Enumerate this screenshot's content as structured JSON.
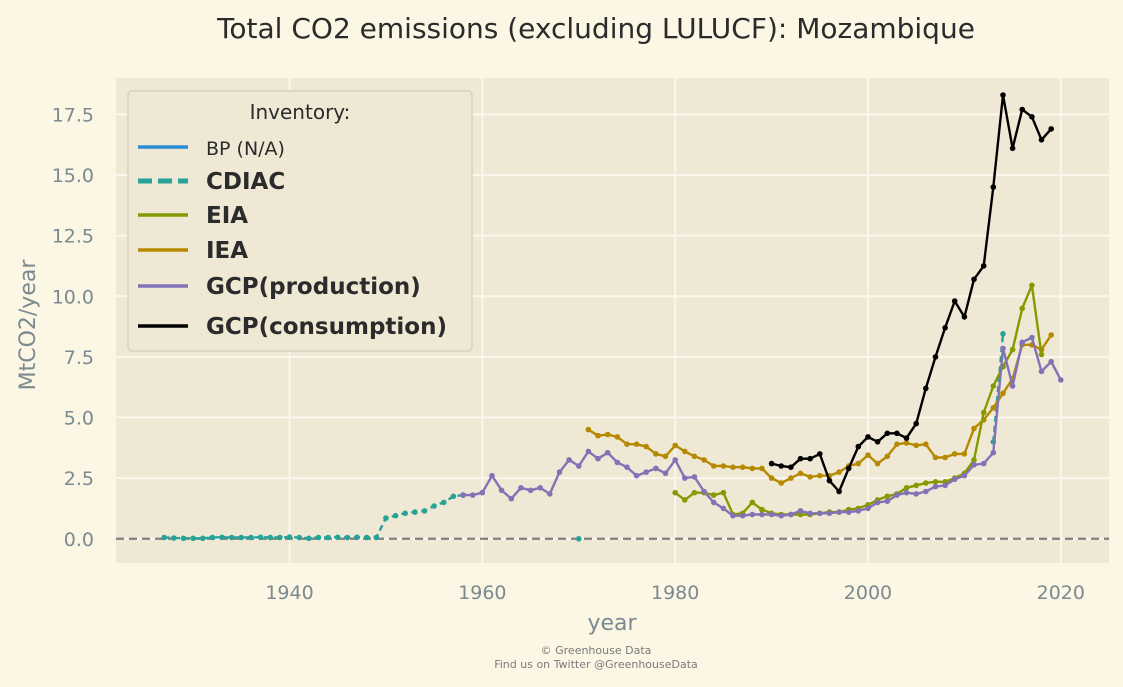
{
  "chart_data": {
    "type": "line",
    "title": "Total CO2 emissions (excluding LULUCF): Mozambique",
    "xlabel": "year",
    "ylabel": "MtCO2/year",
    "xlim": [
      1922,
      2025
    ],
    "ylim": [
      -1.0,
      19.0
    ],
    "x_ticks": [
      1940,
      1960,
      1980,
      2000,
      2020
    ],
    "x_tick_labels": [
      "1940",
      "1960",
      "1980",
      "2000",
      "2020"
    ],
    "y_ticks": [
      0.0,
      2.5,
      5.0,
      7.5,
      10.0,
      12.5,
      15.0,
      17.5
    ],
    "y_tick_labels": [
      "0.0",
      "2.5",
      "5.0",
      "7.5",
      "10.0",
      "12.5",
      "15.0",
      "17.5"
    ],
    "grid": true,
    "zero_line": true,
    "legend_position": "top-left",
    "legend": {
      "title": "Inventory:",
      "entries": [
        "BP (N/A)",
        "CDIAC",
        "EIA",
        "IEA",
        "GCP(production)",
        "GCP(consumption)"
      ]
    },
    "colors": {
      "background": "#fcf6e4",
      "plot_background": "#efe8d5",
      "grid": "#fbf7ec",
      "zero_line": "#7f7f7f",
      "BP": "#2b8cd6",
      "CDIAC": "#26a296",
      "EIA": "#859900",
      "IEA": "#b58900",
      "GCP_production": "#8272b6",
      "GCP_consumption": "#000000"
    },
    "series": [
      {
        "name": "CDIAC",
        "style": "dashed",
        "color": "#26a296",
        "segments": [
          {
            "x": [
              1927,
              1928,
              1929,
              1930,
              1931,
              1932,
              1933,
              1934,
              1935,
              1936,
              1937,
              1938,
              1939,
              1940,
              1941,
              1942,
              1943,
              1944,
              1945,
              1946,
              1947,
              1948,
              1949,
              1950,
              1951,
              1952,
              1953,
              1954,
              1955,
              1956,
              1957,
              1958
            ],
            "y": [
              0.05,
              0.03,
              0.02,
              0.02,
              0.02,
              0.05,
              0.06,
              0.05,
              0.05,
              0.05,
              0.06,
              0.05,
              0.05,
              0.07,
              0.05,
              0.02,
              0.05,
              0.05,
              0.06,
              0.05,
              0.06,
              0.05,
              0.05,
              0.85,
              0.95,
              1.05,
              1.1,
              1.15,
              1.35,
              1.5,
              1.75,
              1.8
            ]
          },
          {
            "x": [
              1970
            ],
            "y": [
              0.0
            ]
          },
          {
            "x": [
              2013,
              2014
            ],
            "y": [
              4.0,
              8.45
            ]
          }
        ]
      },
      {
        "name": "EIA",
        "style": "solid",
        "color": "#859900",
        "segments": [
          {
            "x": [
              1980,
              1981,
              1982,
              1983,
              1984,
              1985,
              1986,
              1987,
              1988,
              1989,
              1990,
              1991,
              1992,
              1993,
              1994,
              1995,
              1996,
              1997,
              1998,
              1999,
              2000,
              2001,
              2002,
              2003,
              2004,
              2005,
              2006,
              2007,
              2008,
              2009,
              2010,
              2011,
              2012,
              2013,
              2014,
              2015,
              2016,
              2017,
              2018
            ],
            "y": [
              1.9,
              1.6,
              1.9,
              1.9,
              1.8,
              1.9,
              1.0,
              1.05,
              1.5,
              1.2,
              1.05,
              1.0,
              1.0,
              1.0,
              1.0,
              1.05,
              1.1,
              1.1,
              1.2,
              1.25,
              1.4,
              1.6,
              1.75,
              1.85,
              2.1,
              2.2,
              2.3,
              2.35,
              2.35,
              2.5,
              2.7,
              3.25,
              5.2,
              6.3,
              7.1,
              7.8,
              9.5,
              10.45,
              7.6
            ]
          }
        ]
      },
      {
        "name": "IEA",
        "style": "solid",
        "color": "#b58900",
        "segments": [
          {
            "x": [
              1971,
              1972,
              1973,
              1974,
              1975,
              1976,
              1977,
              1978,
              1979,
              1980,
              1981,
              1982,
              1983,
              1984,
              1985,
              1986,
              1987,
              1988,
              1989,
              1990,
              1991,
              1992,
              1993,
              1994,
              1995,
              1996,
              1997,
              1998,
              1999,
              2000,
              2001,
              2002,
              2003,
              2004,
              2005,
              2006,
              2007,
              2008,
              2009,
              2010,
              2011,
              2012,
              2013,
              2014,
              2015,
              2016,
              2017,
              2018,
              2019
            ],
            "y": [
              4.5,
              4.25,
              4.3,
              4.2,
              3.9,
              3.9,
              3.8,
              3.5,
              3.4,
              3.85,
              3.6,
              3.4,
              3.25,
              3.0,
              3.0,
              2.95,
              2.95,
              2.9,
              2.9,
              2.5,
              2.3,
              2.5,
              2.7,
              2.55,
              2.6,
              2.6,
              2.75,
              3.0,
              3.1,
              3.45,
              3.1,
              3.4,
              3.9,
              3.95,
              3.85,
              3.9,
              3.35,
              3.35,
              3.5,
              3.5,
              4.55,
              4.9,
              5.4,
              6.0,
              6.6,
              8.0,
              8.0,
              7.8,
              8.4
            ]
          }
        ]
      },
      {
        "name": "GCP(production)",
        "style": "solid",
        "color": "#8272b6",
        "segments": [
          {
            "x": [
              1958,
              1959,
              1960,
              1961,
              1962,
              1963,
              1964,
              1965,
              1966,
              1967,
              1968,
              1969,
              1970,
              1971,
              1972,
              1973,
              1974,
              1975,
              1976,
              1977,
              1978,
              1979,
              1980,
              1981,
              1982,
              1983,
              1984,
              1985,
              1986,
              1987,
              1988,
              1989,
              1990,
              1991,
              1992,
              1993,
              1994,
              1995,
              1996,
              1997,
              1998,
              1999,
              2000,
              2001,
              2002,
              2003,
              2004,
              2005,
              2006,
              2007,
              2008,
              2009,
              2010,
              2011,
              2012,
              2013,
              2014,
              2015,
              2016,
              2017,
              2018,
              2019,
              2020
            ],
            "y": [
              1.8,
              1.8,
              1.9,
              2.6,
              2.0,
              1.65,
              2.1,
              2.0,
              2.1,
              1.85,
              2.75,
              3.25,
              3.0,
              3.6,
              3.3,
              3.55,
              3.15,
              2.95,
              2.6,
              2.75,
              2.9,
              2.7,
              3.25,
              2.5,
              2.55,
              1.95,
              1.5,
              1.25,
              0.95,
              0.95,
              1.0,
              1.0,
              1.0,
              0.95,
              1.0,
              1.15,
              1.05,
              1.05,
              1.05,
              1.1,
              1.1,
              1.15,
              1.25,
              1.5,
              1.55,
              1.8,
              1.9,
              1.85,
              1.95,
              2.15,
              2.2,
              2.45,
              2.6,
              3.05,
              3.1,
              3.55,
              7.85,
              6.3,
              8.1,
              8.3,
              6.9,
              7.3,
              6.55
            ]
          }
        ]
      },
      {
        "name": "GCP(consumption)",
        "style": "solid",
        "color": "#000000",
        "segments": [
          {
            "x": [
              1990,
              1991,
              1992,
              1993,
              1994,
              1995,
              1996,
              1997,
              1998,
              1999,
              2000,
              2001,
              2002,
              2003,
              2004,
              2005,
              2006,
              2007,
              2008,
              2009,
              2010,
              2011,
              2012,
              2013,
              2014,
              2015,
              2016,
              2017,
              2018,
              2019
            ],
            "y": [
              3.1,
              3.0,
              2.95,
              3.3,
              3.3,
              3.5,
              2.4,
              1.95,
              2.9,
              3.8,
              4.2,
              4.0,
              4.35,
              4.35,
              4.15,
              4.75,
              6.2,
              7.5,
              8.7,
              9.8,
              9.15,
              10.7,
              11.25,
              14.5,
              18.3,
              16.1,
              17.7,
              17.4,
              16.45,
              16.9
            ]
          }
        ]
      }
    ]
  },
  "credits": {
    "line1": "© Greenhouse Data",
    "line2": "Find us on Twitter @GreenhouseData"
  }
}
